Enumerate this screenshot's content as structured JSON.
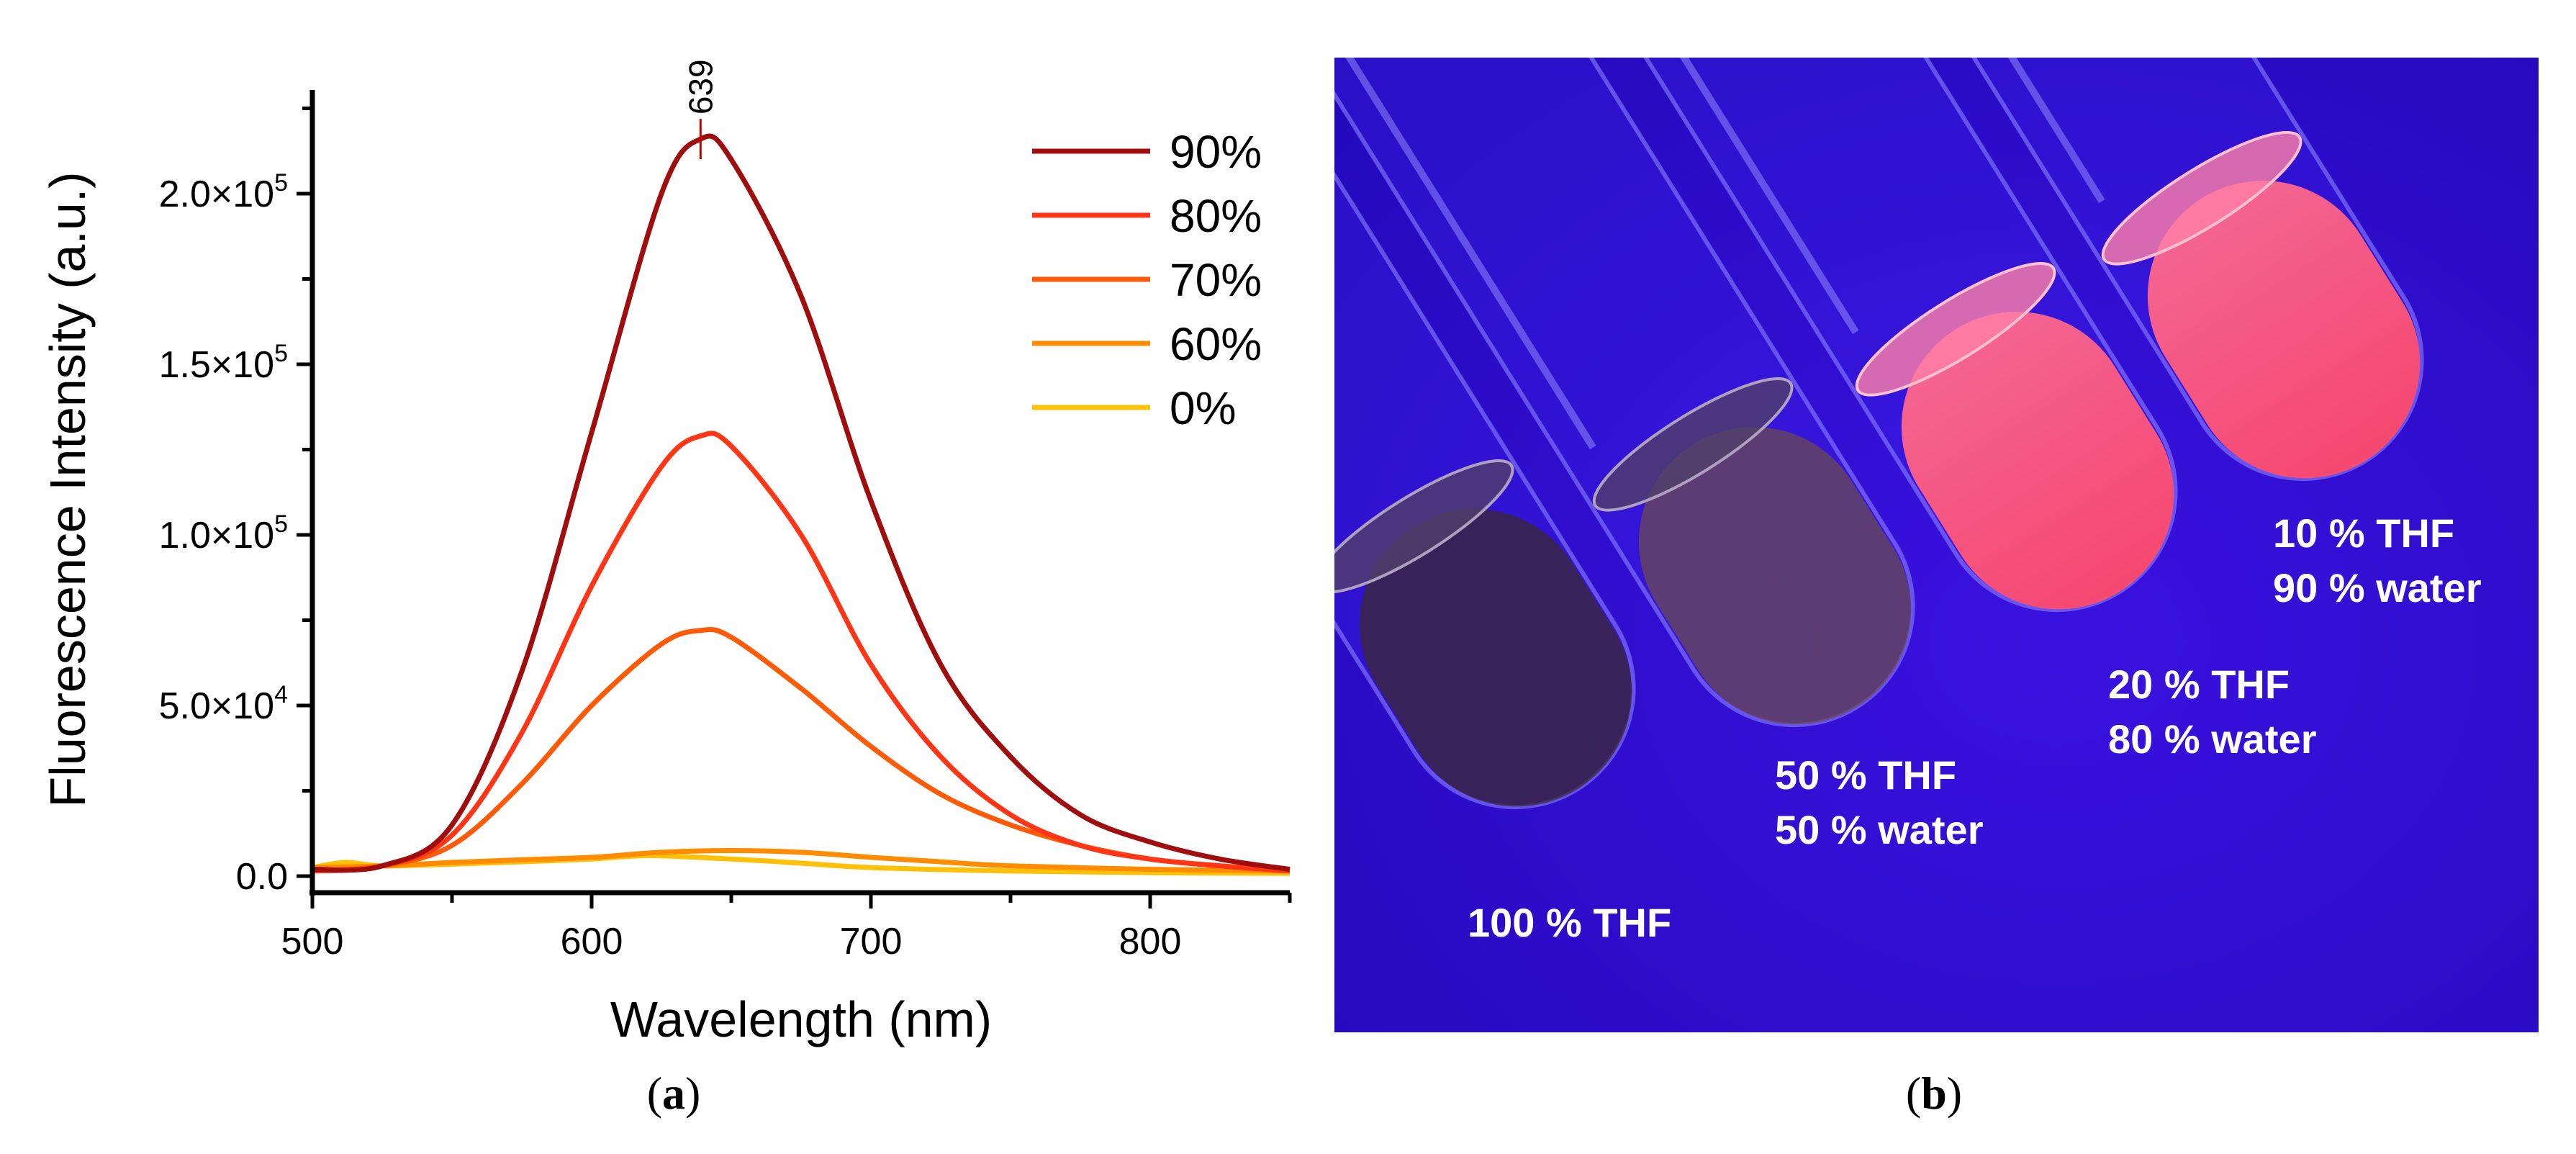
{
  "chart_data": {
    "type": "line",
    "xlabel": "Wavelength (nm)",
    "ylabel": "Fluorescence Intensity (a.u.)",
    "xlim": [
      500,
      850
    ],
    "ylim": [
      -5000,
      230000
    ],
    "xticks": [
      500,
      600,
      700,
      800
    ],
    "xtick_labels": [
      "500",
      "600",
      "700",
      "800"
    ],
    "yticks": [
      0,
      50000,
      100000,
      150000,
      200000
    ],
    "ytick_labels": [
      {
        "mantissa": "0.0",
        "exp": ""
      },
      {
        "mantissa": "5.0×10",
        "exp": "4"
      },
      {
        "mantissa": "1.0×10",
        "exp": "5"
      },
      {
        "mantissa": "1.5×10",
        "exp": "5"
      },
      {
        "mantissa": "2.0×10",
        "exp": "5"
      }
    ],
    "legend_position": "top-right",
    "annotation": {
      "text": "639",
      "x": 639,
      "y": 216000
    },
    "grid": false,
    "series": [
      {
        "name": "90%",
        "color": "#a00d0d",
        "x": [
          500,
          525,
          550,
          575,
          600,
          625,
          639,
          650,
          675,
          700,
          725,
          750,
          775,
          800,
          825,
          850
        ],
        "y": [
          2000,
          3000,
          15000,
          60000,
          130000,
          200000,
          216000,
          210000,
          170000,
          110000,
          62000,
          35000,
          18000,
          10000,
          5000,
          2000
        ]
      },
      {
        "name": "80%",
        "color": "#ff3516",
        "x": [
          500,
          525,
          550,
          575,
          600,
          625,
          639,
          650,
          675,
          700,
          725,
          750,
          775,
          800,
          825,
          850
        ],
        "y": [
          1500,
          3000,
          12000,
          42000,
          85000,
          120000,
          129000,
          126000,
          100000,
          62000,
          35000,
          18000,
          9000,
          5000,
          3000,
          1500
        ]
      },
      {
        "name": "70%",
        "color": "#ff5a05",
        "x": [
          500,
          525,
          550,
          575,
          600,
          625,
          639,
          650,
          675,
          700,
          725,
          750,
          775,
          800,
          825,
          850
        ],
        "y": [
          1500,
          3000,
          9000,
          27000,
          50000,
          68000,
          72000,
          70000,
          55000,
          38000,
          24000,
          15000,
          9000,
          5000,
          3000,
          1500
        ]
      },
      {
        "name": "60%",
        "color": "#ff8c00",
        "x": [
          500,
          525,
          550,
          575,
          600,
          625,
          650,
          675,
          700,
          725,
          750,
          800,
          850
        ],
        "y": [
          2500,
          3000,
          4000,
          4800,
          5500,
          7000,
          7500,
          7000,
          5500,
          4200,
          3000,
          2000,
          1500
        ]
      },
      {
        "name": "0%",
        "color": "#ffc107",
        "x": [
          500,
          512,
          525,
          550,
          575,
          600,
          620,
          650,
          675,
          700,
          750,
          800,
          850
        ],
        "y": [
          2500,
          4000,
          3000,
          3500,
          4200,
          5000,
          6000,
          5000,
          3800,
          2500,
          1500,
          1000,
          800
        ]
      }
    ]
  },
  "photo": {
    "labels": [
      [
        "100 % THF"
      ],
      [
        "50 % THF",
        "50 % water"
      ],
      [
        "20 % THF",
        "80 % water"
      ],
      [
        "10 % THF",
        "90 % water"
      ]
    ]
  },
  "captions": {
    "a": "a",
    "b": "b"
  }
}
